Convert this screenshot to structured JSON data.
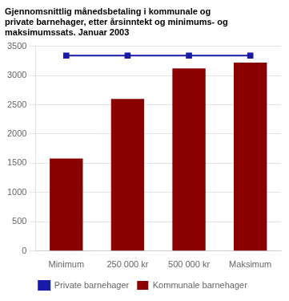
{
  "chart_data": {
    "type": "bar",
    "title": "Gjennomsnittlig månedsbetaling i kommunale og\nprivate barnehager, etter årsinntekt og minimums- og\nmaksimumssats. Januar 2003",
    "categories": [
      "Minimum",
      "250 000 kr",
      "500 000 kr",
      "Maksimum"
    ],
    "series": [
      {
        "name": "Kommunale barnehager",
        "type": "bar",
        "color": "#8B0000",
        "values": [
          1580,
          2600,
          3120,
          3220
        ]
      },
      {
        "name": "Private barnehager",
        "type": "line",
        "color": "#1a1aaa",
        "marker": "square",
        "line_style": "solid",
        "values": [
          3340,
          3340,
          3340,
          3340
        ]
      }
    ],
    "ylim": [
      0,
      3500
    ],
    "yticks": [
      0,
      500,
      1000,
      1500,
      2000,
      2500,
      3000,
      3500
    ],
    "grid": true,
    "legend": "bottom"
  }
}
